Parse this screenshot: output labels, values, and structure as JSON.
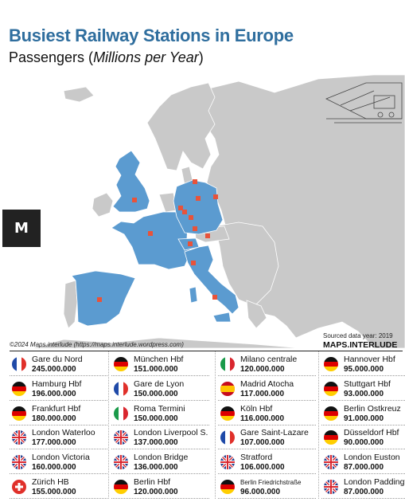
{
  "header": {
    "title": "Busiest Railway Stations in Europe",
    "subtitle_pre": "Passengers (",
    "subtitle_em": "Millions per Year",
    "subtitle_post": ")"
  },
  "logo": {
    "glyph": "M",
    "icon": "maps-interlude-logo"
  },
  "credit": "©2024 Maps.interlude (https://maps.interlude.wordpress.com)",
  "source_note": "Sourced data year: 2019",
  "brand": "MAPS.INTERLUDE",
  "colors": {
    "land_highlight": "#5b9bd0",
    "land_other": "#c9c9c9",
    "sea": "#ffffff",
    "marker": "#e8533a",
    "title": "#2f6e9e"
  },
  "stations": [
    {
      "name": "Gare du Nord",
      "value": "245.000.000",
      "flag": "france"
    },
    {
      "name": "Hamburg Hbf",
      "value": "196.000.000",
      "flag": "germany"
    },
    {
      "name": "Frankfurt Hbf",
      "value": "180.000.000",
      "flag": "germany"
    },
    {
      "name": "London Waterloo",
      "value": "177.000.000",
      "flag": "uk"
    },
    {
      "name": "London Victoria",
      "value": "160.000.000",
      "flag": "uk"
    },
    {
      "name": "Zürich HB",
      "value": "155.000.000",
      "flag": "switzerland"
    },
    {
      "name": "München Hbf",
      "value": "151.000.000",
      "flag": "germany"
    },
    {
      "name": "Gare de Lyon",
      "value": "150.000.000",
      "flag": "france"
    },
    {
      "name": "Roma Termini",
      "value": "150.000.000",
      "flag": "italy"
    },
    {
      "name": "London Liverpool S.",
      "value": "137.000.000",
      "flag": "uk"
    },
    {
      "name": "London Bridge",
      "value": "136.000.000",
      "flag": "uk"
    },
    {
      "name": "Berlin Hbf",
      "value": "120.000.000",
      "flag": "germany"
    },
    {
      "name": "Milano centrale",
      "value": "120.000.000",
      "flag": "italy"
    },
    {
      "name": "Madrid Atocha",
      "value": "117.000.000",
      "flag": "spain"
    },
    {
      "name": "Köln Hbf",
      "value": "116.000.000",
      "flag": "germany"
    },
    {
      "name": "Gare Saint-Lazare",
      "value": "107.000.000",
      "flag": "france"
    },
    {
      "name": "Stratford",
      "value": "106.000.000",
      "flag": "uk"
    },
    {
      "name": "Berlin Friedrichstraße",
      "value": "96.000.000",
      "flag": "germany"
    },
    {
      "name": "Hannover Hbf",
      "value": "95.000.000",
      "flag": "germany"
    },
    {
      "name": "Stuttgart Hbf",
      "value": "93.000.000",
      "flag": "germany"
    },
    {
      "name": "Berlin Ostkreuz",
      "value": "91.000.000",
      "flag": "germany"
    },
    {
      "name": "Düsseldorf Hbf",
      "value": "90.000.000",
      "flag": "germany"
    },
    {
      "name": "London Euston",
      "value": "87.000.000",
      "flag": "uk"
    },
    {
      "name": "London Paddington",
      "value": "87.000.000",
      "flag": "uk"
    }
  ]
}
